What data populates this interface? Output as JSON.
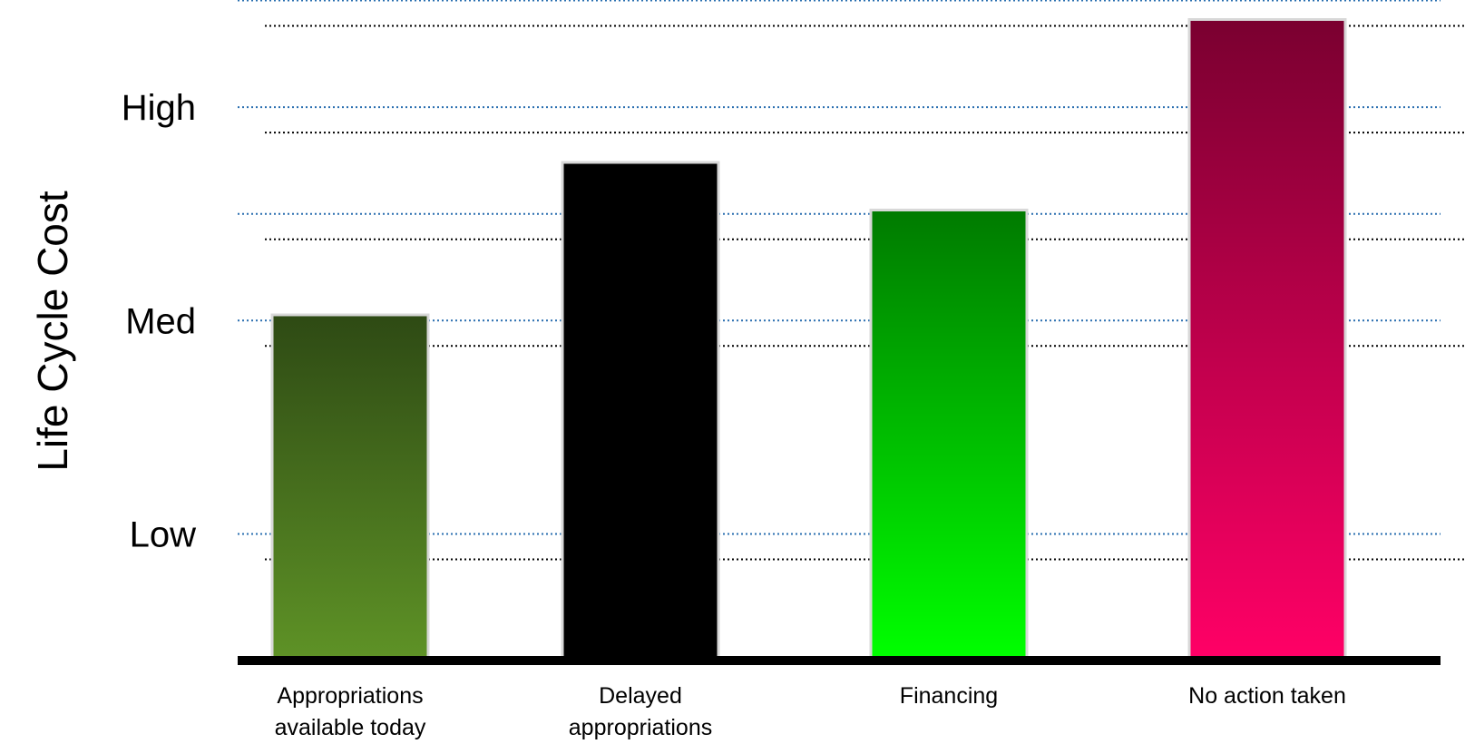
{
  "chart_data": {
    "type": "bar",
    "ylabel": "Life Cycle Cost",
    "xlabel": "",
    "y_ticks": [
      "Low",
      "Med",
      "High"
    ],
    "ylim": [
      0,
      3.45
    ],
    "grid": true,
    "categories": [
      [
        "Appropriations",
        "available today"
      ],
      [
        "Delayed",
        "appropriations"
      ],
      [
        "Financing"
      ],
      [
        "No action taken"
      ]
    ],
    "values": [
      1.8,
      2.6,
      2.35,
      3.35
    ],
    "colors": [
      {
        "top": "#2e4a14",
        "bottom": "#5e9226"
      },
      {
        "top": "#000000",
        "bottom": "#000000"
      },
      {
        "top": "#007a00",
        "bottom": "#00ff00"
      },
      {
        "top": "#7a0030",
        "bottom": "#ff0066"
      }
    ]
  }
}
